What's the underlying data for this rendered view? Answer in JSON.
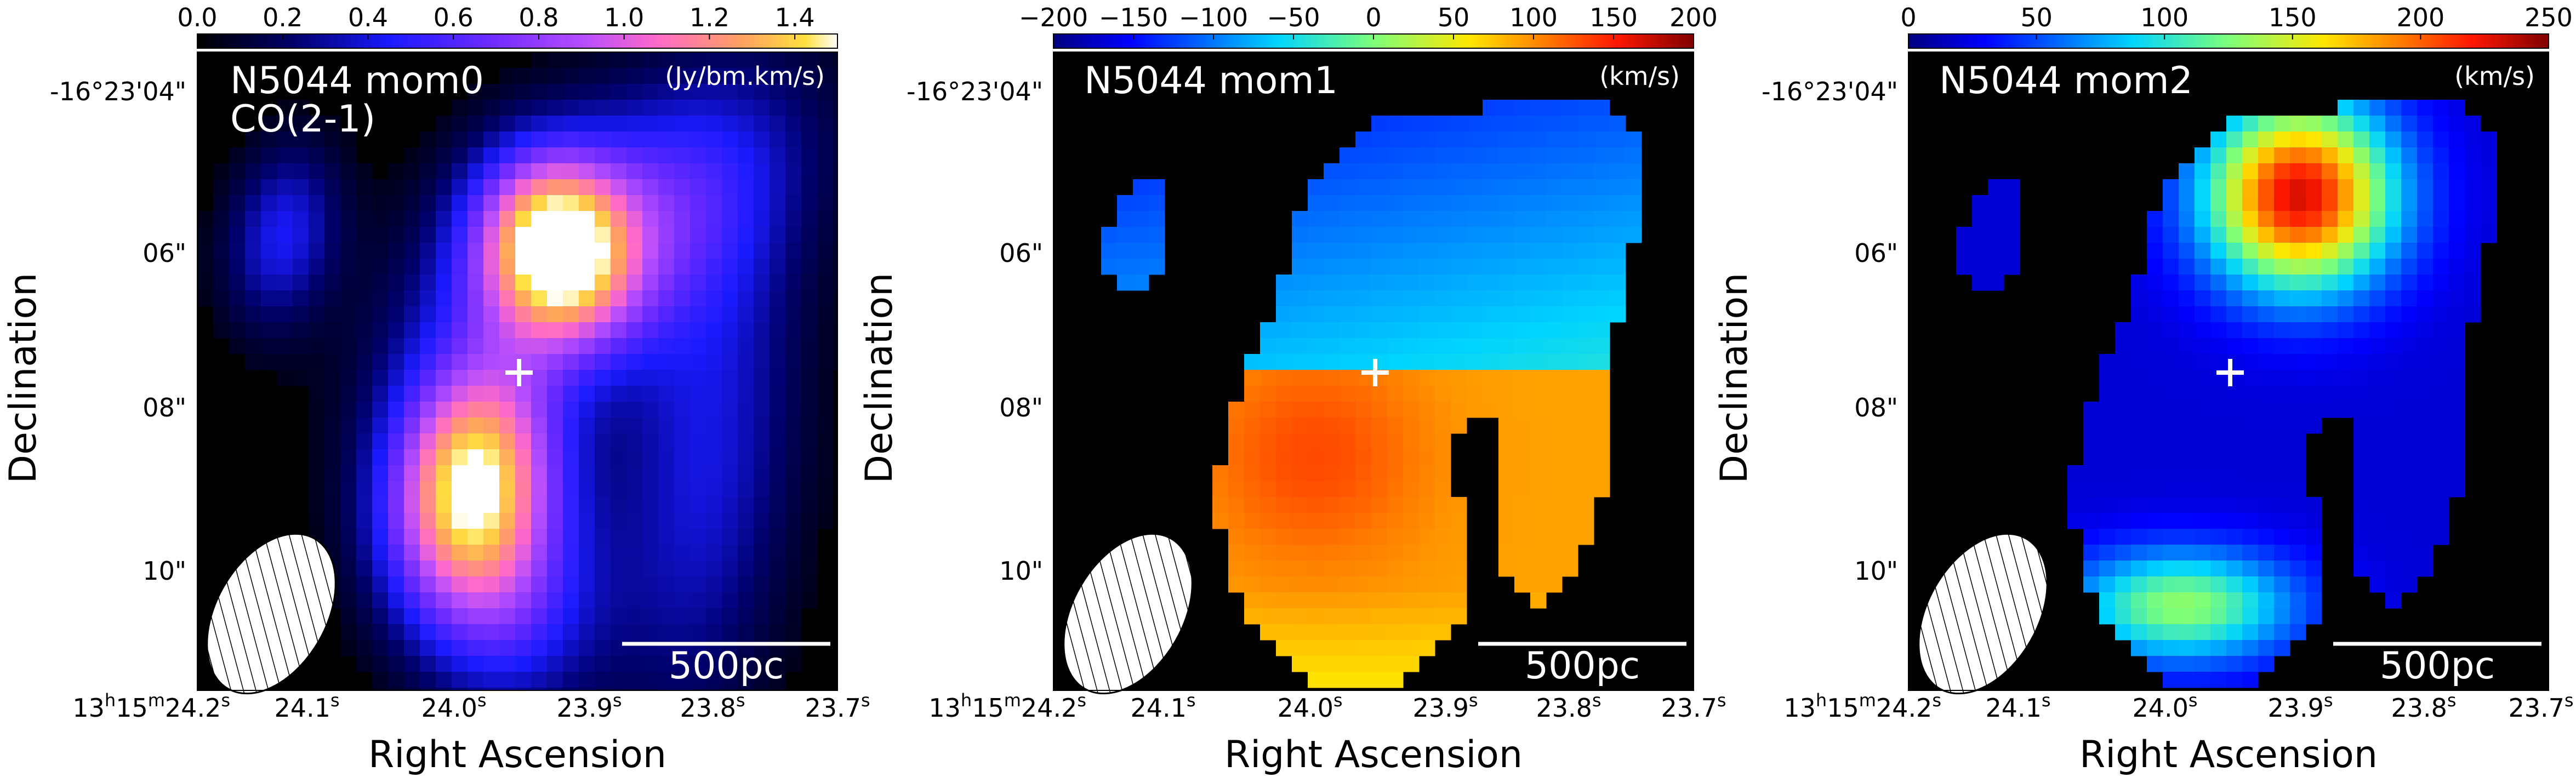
{
  "panels": [
    {
      "title": "N5044 mom0",
      "subtitle": "CO(2-1)",
      "unit": "(Jy/bm.km/s)",
      "colormap": "gnuplot2",
      "colorbar_ticks": [
        "0.0",
        "0.2",
        "0.4",
        "0.6",
        "0.8",
        "1.0",
        "1.2",
        "1.4"
      ],
      "colorbar_range": [
        0.0,
        1.5
      ],
      "scalebar_label": "500pc",
      "xlabel": "Right Ascension",
      "ylabel": "Declination",
      "ra_ticks": [
        "13h15m24.2s",
        "24.1s",
        "24.0s",
        "23.9s",
        "23.8s",
        "23.7s"
      ],
      "dec_ticks": [
        "-16°23'04\"",
        "06\"",
        "08\"",
        "10\""
      ]
    },
    {
      "title": "N5044 mom1",
      "subtitle": "",
      "unit": "(km/s)",
      "colormap": "jet",
      "colorbar_ticks": [
        "−200",
        "−150",
        "−100",
        "−50",
        "0",
        "50",
        "100",
        "150",
        "200"
      ],
      "colorbar_range": [
        -200,
        200
      ],
      "scalebar_label": "500pc",
      "xlabel": "Right Ascension",
      "ylabel": "Declination",
      "ra_ticks": [
        "13h15m24.2s",
        "24.1s",
        "24.0s",
        "23.9s",
        "23.8s",
        "23.7s"
      ],
      "dec_ticks": [
        "-16°23'04\"",
        "06\"",
        "08\"",
        "10\""
      ]
    },
    {
      "title": "N5044 mom2",
      "subtitle": "",
      "unit": "(km/s)",
      "colormap": "jet",
      "colorbar_ticks": [
        "0",
        "50",
        "100",
        "150",
        "200",
        "250"
      ],
      "colorbar_range": [
        0,
        250
      ],
      "scalebar_label": "500pc",
      "xlabel": "Right Ascension",
      "ylabel": "Declination",
      "ra_ticks": [
        "13h15m24.2s",
        "24.1s",
        "24.0s",
        "23.9s",
        "23.8s",
        "23.7s"
      ],
      "dec_ticks": [
        "-16°23'04\"",
        "06\"",
        "08\"",
        "10\""
      ]
    }
  ],
  "colors": {
    "background": "#000000",
    "beam_fill": "#ffffff",
    "marker": "#ffffff"
  },
  "icons": {
    "beam": "hatched-ellipse",
    "center_marker": "white-cross"
  }
}
